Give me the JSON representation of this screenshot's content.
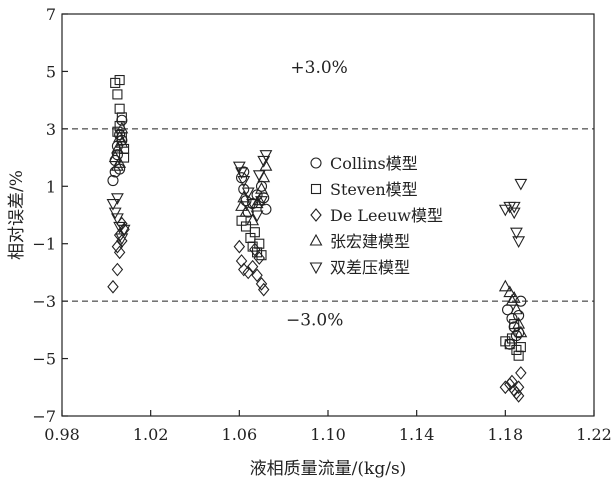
{
  "chart_data": {
    "type": "scatter",
    "xlabel": "液相质量流量/(kg/s)",
    "ylabel": "相对误差/%",
    "xlim": [
      0.98,
      1.22
    ],
    "ylim": [
      -7,
      7
    ],
    "xticks": [
      "0.98",
      "1.02",
      "1.06",
      "1.10",
      "1.14",
      "1.18",
      "1.22"
    ],
    "yticks": [
      "7",
      "5",
      "3",
      "1",
      "−1",
      "−3",
      "−5",
      "−7"
    ],
    "grid": false,
    "legend_position": "center",
    "reference_lines": [
      {
        "y": 3,
        "label": "+3.0%",
        "label_x": 1.096,
        "label_y": 4.95
      },
      {
        "y": -3,
        "label": "−3.0%",
        "label_x": 1.094,
        "label_y": -3.85
      }
    ],
    "series": [
      {
        "name": "Collins模型",
        "marker": "circle",
        "points": [
          [
            1.003,
            1.2
          ],
          [
            1.004,
            1.9
          ],
          [
            1.005,
            2.4
          ],
          [
            1.006,
            2.8
          ],
          [
            1.007,
            3.3
          ],
          [
            1.005,
            2.1
          ],
          [
            1.006,
            1.6
          ],
          [
            1.004,
            1.5
          ],
          [
            1.007,
            2.6
          ],
          [
            1.061,
            1.3
          ],
          [
            1.062,
            0.9
          ],
          [
            1.063,
            0.5
          ],
          [
            1.064,
            0.1
          ],
          [
            1.066,
            0.4
          ],
          [
            1.068,
            0.7
          ],
          [
            1.07,
            1.0
          ],
          [
            1.071,
            0.6
          ],
          [
            1.072,
            0.2
          ],
          [
            1.062,
            1.5
          ],
          [
            1.181,
            -3.3
          ],
          [
            1.183,
            -3.6
          ],
          [
            1.184,
            -3.9
          ],
          [
            1.185,
            -4.2
          ],
          [
            1.186,
            -3.5
          ],
          [
            1.187,
            -3.0
          ],
          [
            1.182,
            -4.5
          ],
          [
            1.186,
            -4.1
          ]
        ]
      },
      {
        "name": "Steven模型",
        "marker": "square",
        "points": [
          [
            1.004,
            4.6
          ],
          [
            1.006,
            4.7
          ],
          [
            1.005,
            4.2
          ],
          [
            1.006,
            3.7
          ],
          [
            1.007,
            3.4
          ],
          [
            1.006,
            3.1
          ],
          [
            1.007,
            2.7
          ],
          [
            1.008,
            2.3
          ],
          [
            1.008,
            2.0
          ],
          [
            1.005,
            2.9
          ],
          [
            1.063,
            -0.4
          ],
          [
            1.065,
            -0.8
          ],
          [
            1.066,
            -1.1
          ],
          [
            1.068,
            -1.3
          ],
          [
            1.069,
            -1.0
          ],
          [
            1.061,
            -0.2
          ],
          [
            1.067,
            -0.6
          ],
          [
            1.07,
            -1.4
          ],
          [
            1.18,
            -4.4
          ],
          [
            1.182,
            -4.5
          ],
          [
            1.183,
            -4.3
          ],
          [
            1.185,
            -4.7
          ],
          [
            1.186,
            -4.9
          ],
          [
            1.187,
            -4.6
          ],
          [
            1.184,
            -3.8
          ]
        ]
      },
      {
        "name": "De Leeuw模型",
        "marker": "diamond",
        "points": [
          [
            1.003,
            -2.5
          ],
          [
            1.005,
            -1.9
          ],
          [
            1.006,
            -1.3
          ],
          [
            1.007,
            -0.9
          ],
          [
            1.008,
            -0.5
          ],
          [
            1.006,
            -0.7
          ],
          [
            1.005,
            -1.1
          ],
          [
            1.007,
            -0.3
          ],
          [
            1.06,
            -1.1
          ],
          [
            1.061,
            -1.6
          ],
          [
            1.062,
            -1.9
          ],
          [
            1.064,
            -2.0
          ],
          [
            1.066,
            -1.8
          ],
          [
            1.068,
            -2.1
          ],
          [
            1.07,
            -2.4
          ],
          [
            1.071,
            -2.6
          ],
          [
            1.069,
            -1.5
          ],
          [
            1.067,
            -1.2
          ],
          [
            1.18,
            -6.0
          ],
          [
            1.182,
            -5.9
          ],
          [
            1.184,
            -6.1
          ],
          [
            1.185,
            -6.2
          ],
          [
            1.186,
            -6.3
          ],
          [
            1.187,
            -5.5
          ],
          [
            1.186,
            -6.0
          ],
          [
            1.183,
            -5.8
          ]
        ]
      },
      {
        "name": "张宏建模型",
        "marker": "triangle-up",
        "points": [
          [
            1.004,
            2.0
          ],
          [
            1.005,
            2.3
          ],
          [
            1.006,
            2.7
          ],
          [
            1.007,
            3.0
          ],
          [
            1.006,
            1.8
          ],
          [
            1.005,
            1.7
          ],
          [
            1.007,
            2.5
          ],
          [
            1.061,
            0.3
          ],
          [
            1.062,
            0.6
          ],
          [
            1.063,
            0.1
          ],
          [
            1.066,
            -0.2
          ],
          [
            1.068,
            0.4
          ],
          [
            1.07,
            0.9
          ],
          [
            1.071,
            1.3
          ],
          [
            1.072,
            1.7
          ],
          [
            1.069,
            0.5
          ],
          [
            1.18,
            -2.5
          ],
          [
            1.182,
            -2.7
          ],
          [
            1.183,
            -3.0
          ],
          [
            1.185,
            -3.3
          ],
          [
            1.186,
            -3.8
          ],
          [
            1.187,
            -4.1
          ],
          [
            1.184,
            -2.9
          ]
        ]
      },
      {
        "name": "双差压模型",
        "marker": "triangle-down",
        "points": [
          [
            1.003,
            0.4
          ],
          [
            1.004,
            0.1
          ],
          [
            1.005,
            0.6
          ],
          [
            1.006,
            -0.4
          ],
          [
            1.007,
            -0.8
          ],
          [
            1.008,
            -0.5
          ],
          [
            1.005,
            -0.1
          ],
          [
            1.06,
            1.7
          ],
          [
            1.061,
            1.5
          ],
          [
            1.062,
            1.2
          ],
          [
            1.064,
            0.8
          ],
          [
            1.066,
            0.4
          ],
          [
            1.068,
            0.0
          ],
          [
            1.07,
            0.5
          ],
          [
            1.071,
            1.9
          ],
          [
            1.072,
            2.1
          ],
          [
            1.069,
            1.4
          ],
          [
            1.18,
            0.2
          ],
          [
            1.182,
            0.3
          ],
          [
            1.184,
            0.1
          ],
          [
            1.185,
            -0.6
          ],
          [
            1.186,
            -0.9
          ],
          [
            1.187,
            1.1
          ],
          [
            1.184,
            0.3
          ]
        ]
      }
    ]
  }
}
